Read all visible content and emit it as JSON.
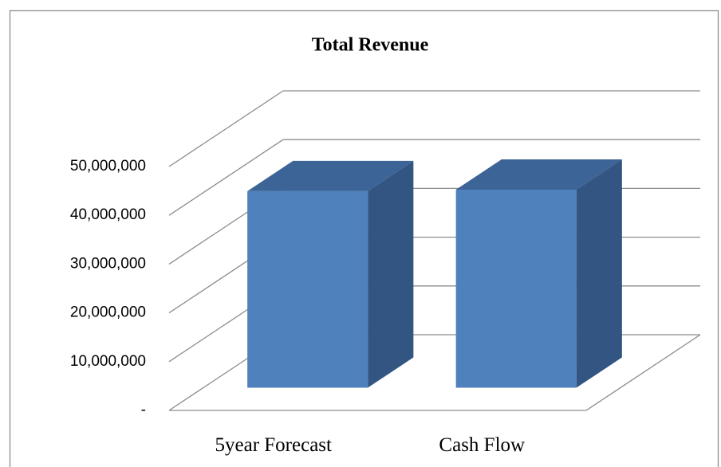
{
  "chart_data": {
    "type": "bar3d",
    "title": "Total Revenue",
    "categories": [
      "5year Forecast",
      "Cash Flow"
    ],
    "values": [
      40300000,
      40600000
    ],
    "color": "#4f81bd",
    "ylim": [
      0,
      50000000
    ],
    "yticks": [
      {
        "value": 0,
        "label": "-"
      },
      {
        "value": 10000000,
        "label": "10,000,000"
      },
      {
        "value": 20000000,
        "label": "20,000,000"
      },
      {
        "value": 30000000,
        "label": "30,000,000"
      },
      {
        "value": 40000000,
        "label": "40,000,000"
      },
      {
        "value": 50000000,
        "label": "50,000,000"
      }
    ],
    "grid": true
  }
}
